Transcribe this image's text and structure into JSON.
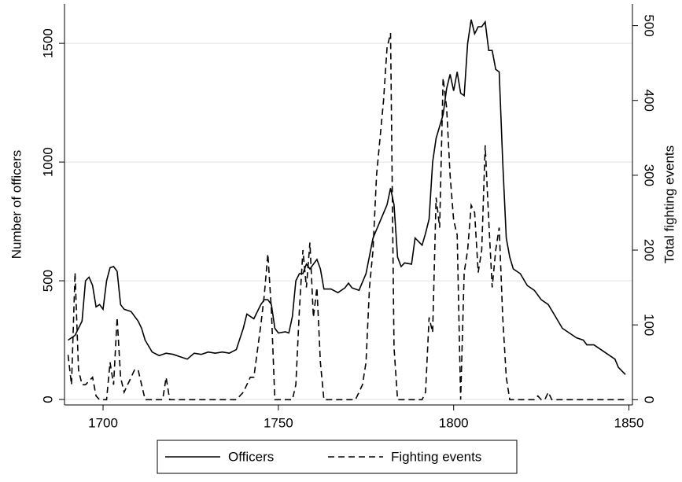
{
  "chart_data": {
    "type": "line",
    "y_label": "Number of officers",
    "y2_label": "Total fighting events",
    "xlim": [
      1689,
      1851
    ],
    "xticks": [
      1700,
      1750,
      1800,
      1850
    ],
    "ylim": [
      -23,
      1666
    ],
    "yticks": [
      0,
      500,
      1000,
      1500
    ],
    "y2lim": [
      -7,
      529
    ],
    "y2ticks": [
      0,
      100,
      200,
      300,
      400,
      500
    ],
    "grid": true,
    "legend": "bottom",
    "series": [
      {
        "name": "Officers",
        "color": "#000000",
        "style": "solid",
        "x": [
          1690,
          1692,
          1694,
          1695,
          1696,
          1697,
          1698,
          1699,
          1700,
          1701,
          1702,
          1703,
          1704,
          1705,
          1706,
          1708,
          1710,
          1711,
          1712,
          1714,
          1716,
          1718,
          1720,
          1722,
          1724,
          1726,
          1728,
          1730,
          1732,
          1734,
          1736,
          1738,
          1740,
          1741,
          1743,
          1745,
          1746,
          1747,
          1748,
          1749,
          1750,
          1752,
          1753,
          1754,
          1755,
          1756,
          1757,
          1758,
          1759,
          1761,
          1762,
          1763,
          1765,
          1767,
          1769,
          1770,
          1771,
          1773,
          1775,
          1777,
          1779,
          1781,
          1782,
          1783,
          1784,
          1785,
          1786,
          1788,
          1789,
          1791,
          1792,
          1793,
          1794,
          1795,
          1797,
          1798,
          1799,
          1800,
          1801,
          1802,
          1803,
          1804,
          1805,
          1806,
          1807,
          1808,
          1809,
          1810,
          1811,
          1812,
          1813,
          1814,
          1815,
          1816,
          1817,
          1819,
          1821,
          1823,
          1825,
          1827,
          1829,
          1831,
          1833,
          1835,
          1837,
          1838,
          1840,
          1842,
          1844,
          1846,
          1847,
          1849
        ],
        "values": [
          250,
          270,
          330,
          500,
          515,
          480,
          390,
          400,
          380,
          500,
          555,
          560,
          540,
          400,
          380,
          370,
          330,
          300,
          250,
          200,
          185,
          195,
          190,
          180,
          170,
          195,
          190,
          200,
          195,
          200,
          195,
          210,
          300,
          360,
          340,
          400,
          420,
          420,
          400,
          300,
          280,
          285,
          280,
          350,
          500,
          530,
          530,
          570,
          550,
          590,
          550,
          465,
          465,
          450,
          470,
          490,
          470,
          460,
          530,
          680,
          750,
          820,
          890,
          820,
          600,
          560,
          575,
          570,
          680,
          650,
          700,
          760,
          1000,
          1100,
          1200,
          1310,
          1370,
          1300,
          1380,
          1290,
          1280,
          1500,
          1600,
          1540,
          1570,
          1570,
          1590,
          1470,
          1470,
          1390,
          1380,
          1000,
          680,
          600,
          550,
          530,
          480,
          460,
          420,
          400,
          350,
          300,
          280,
          260,
          250,
          230,
          230,
          210,
          190,
          170,
          135,
          105
        ]
      },
      {
        "name": "Fighting events",
        "color": "#000000",
        "style": "dashed",
        "axis": "y2",
        "x": [
          1690,
          1691,
          1692,
          1693,
          1694,
          1695,
          1696,
          1697,
          1698,
          1699,
          1700,
          1701,
          1702,
          1703,
          1704,
          1705,
          1706,
          1707,
          1708,
          1709,
          1710,
          1711,
          1712,
          1717,
          1718,
          1719,
          1738,
          1740,
          1741,
          1742,
          1743,
          1745,
          1746,
          1747,
          1748,
          1749,
          1754,
          1755,
          1756,
          1757,
          1758,
          1759,
          1760,
          1761,
          1762,
          1763,
          1772,
          1773,
          1774,
          1775,
          1776,
          1777,
          1778,
          1780,
          1781,
          1782,
          1783,
          1784,
          1791,
          1792,
          1793,
          1794,
          1795,
          1796,
          1797,
          1798,
          1799,
          1800,
          1801,
          1802,
          1803,
          1804,
          1805,
          1806,
          1807,
          1808,
          1809,
          1810,
          1811,
          1812,
          1813,
          1814,
          1815,
          1816,
          1823,
          1824,
          1825,
          1826,
          1827,
          1828,
          1849
        ],
        "values": [
          60,
          20,
          170,
          40,
          20,
          20,
          25,
          30,
          5,
          0,
          0,
          0,
          50,
          20,
          110,
          30,
          10,
          20,
          30,
          40,
          40,
          20,
          0,
          0,
          30,
          0,
          0,
          10,
          20,
          30,
          30,
          100,
          140,
          195,
          120,
          0,
          0,
          20,
          120,
          200,
          150,
          210,
          110,
          150,
          50,
          0,
          0,
          10,
          20,
          50,
          150,
          200,
          300,
          400,
          470,
          490,
          70,
          0,
          0,
          10,
          110,
          90,
          270,
          230,
          430,
          390,
          300,
          240,
          220,
          0,
          170,
          200,
          260,
          250,
          170,
          200,
          340,
          240,
          150,
          200,
          230,
          110,
          30,
          0,
          0,
          5,
          0,
          0,
          10,
          0,
          0
        ]
      }
    ]
  }
}
